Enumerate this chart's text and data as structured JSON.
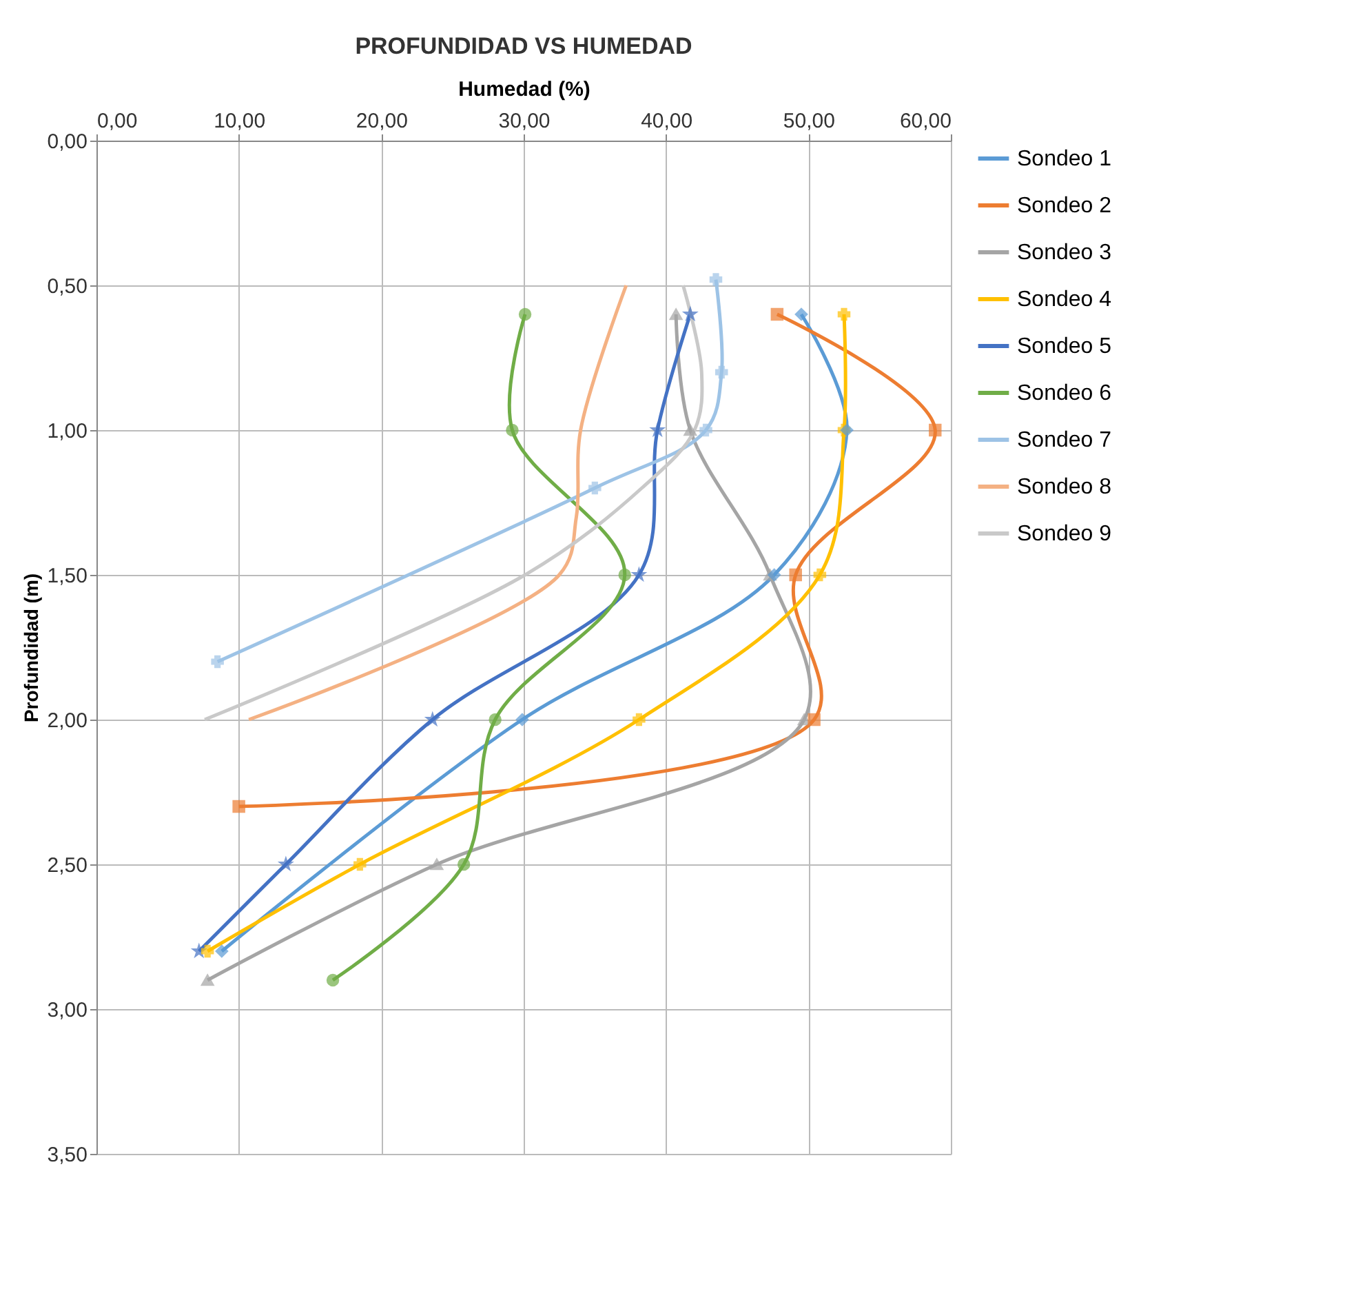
{
  "chart_data": {
    "type": "line",
    "title": "PROFUNDIDAD VS HUMEDAD",
    "xlabel": "Humedad (%)",
    "ylabel": "Profundidad (m)",
    "xlim": [
      0,
      60
    ],
    "ylim": [
      3.5,
      0
    ],
    "xticks": [
      {
        "value": 0,
        "label": "0,00"
      },
      {
        "value": 10,
        "label": "10,00"
      },
      {
        "value": 20,
        "label": "20,00"
      },
      {
        "value": 30,
        "label": "30,00"
      },
      {
        "value": 40,
        "label": "40,00"
      },
      {
        "value": 50,
        "label": "50,00"
      },
      {
        "value": 60,
        "label": "60,00"
      }
    ],
    "yticks": [
      {
        "value": 0,
        "label": "0,00"
      },
      {
        "value": 0.5,
        "label": "0,50"
      },
      {
        "value": 1,
        "label": "1,00"
      },
      {
        "value": 1.5,
        "label": "1,50"
      },
      {
        "value": 2,
        "label": "2,00"
      },
      {
        "value": 2.5,
        "label": "2,50"
      },
      {
        "value": 3,
        "label": "3,00"
      },
      {
        "value": 3.5,
        "label": "3,50"
      }
    ],
    "grid": true,
    "legend": "right",
    "series": [
      {
        "name": "Sondeo 1",
        "color": "#5b9bd5",
        "marker": "diamond",
        "x": [
          49.5,
          52.7,
          47.6,
          29.9,
          8.8
        ],
        "values": [
          0.6,
          1.0,
          1.5,
          2.0,
          2.8
        ]
      },
      {
        "name": "Sondeo 2",
        "color": "#ed7d31",
        "marker": "square",
        "x": [
          47.8,
          58.9,
          49.1,
          50.4,
          10.0
        ],
        "values": [
          0.6,
          1.0,
          1.5,
          2.0,
          2.3
        ]
      },
      {
        "name": "Sondeo 3",
        "color": "#a5a5a5",
        "marker": "triangle",
        "x": [
          40.7,
          41.7,
          47.3,
          49.7,
          23.9,
          7.8
        ],
        "values": [
          0.6,
          1.0,
          1.5,
          2.0,
          2.5,
          2.9
        ]
      },
      {
        "name": "Sondeo 4",
        "color": "#ffc000",
        "marker": "cross",
        "x": [
          52.5,
          52.5,
          50.8,
          38.1,
          18.5,
          7.8
        ],
        "values": [
          0.6,
          1.0,
          1.5,
          2.0,
          2.5,
          2.8
        ]
      },
      {
        "name": "Sondeo 5",
        "color": "#4472c4",
        "marker": "star",
        "x": [
          41.7,
          39.4,
          38.1,
          23.6,
          13.3,
          7.2
        ],
        "values": [
          0.6,
          1.0,
          1.5,
          2.0,
          2.5,
          2.8
        ]
      },
      {
        "name": "Sondeo 6",
        "color": "#70ad47",
        "marker": "circle",
        "x": [
          30.1,
          29.2,
          37.1,
          28.0,
          25.8,
          16.6
        ],
        "values": [
          0.6,
          1.0,
          1.5,
          2.0,
          2.5,
          2.9
        ]
      },
      {
        "name": "Sondeo 7",
        "color": "#9dc3e6",
        "marker": "cross",
        "x": [
          43.5,
          43.9,
          42.8,
          35.0,
          8.5
        ],
        "values": [
          0.48,
          0.8,
          1.0,
          1.2,
          1.8
        ]
      },
      {
        "name": "Sondeo 8",
        "color": "#f4b183",
        "marker": "none",
        "x": [
          37.2,
          34.0,
          33.7,
          32.5,
          10.7
        ],
        "values": [
          0.5,
          1.0,
          1.3,
          1.5,
          2.0
        ]
      },
      {
        "name": "Sondeo 9",
        "color": "#c9c9c9",
        "marker": "none",
        "x": [
          41.2,
          42.5,
          42.0,
          38.3,
          30.1,
          7.6
        ],
        "values": [
          0.5,
          0.8,
          1.0,
          1.2,
          1.5,
          2.0
        ]
      }
    ]
  }
}
